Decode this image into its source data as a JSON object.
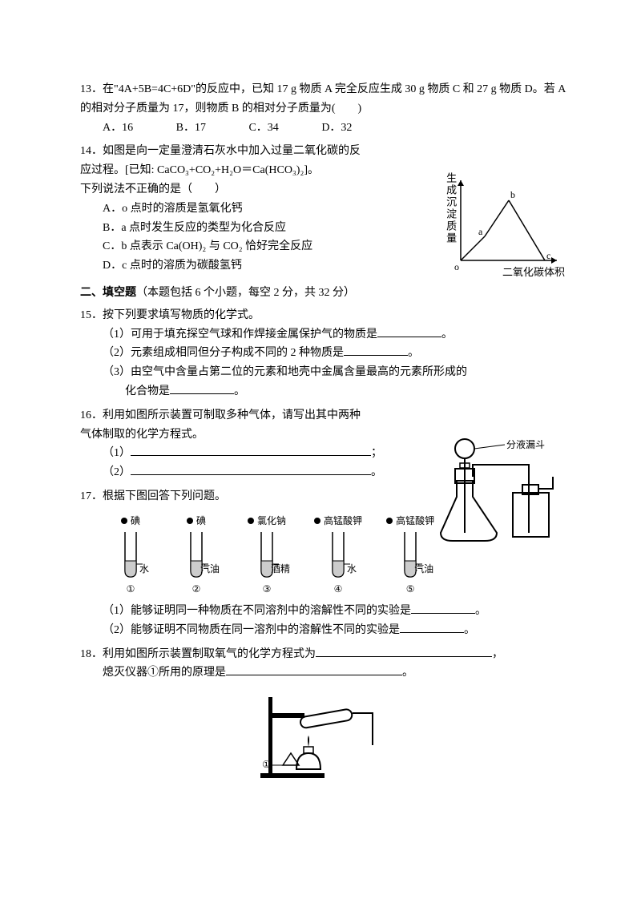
{
  "q13": {
    "num": "13．",
    "text": "在\"4A+5B=4C+6D\"的反应中，已知 17 g 物质 A 完全反应生成 30 g 物质 C 和 27 g 物质 D。若 A 的相对分子质量为 17，则物质 B 的相对分子质量为(　　)",
    "opts": {
      "a": "A．16",
      "b": "B．17",
      "c": "C．34",
      "d": "D．32"
    }
  },
  "q14": {
    "num": "14．",
    "line1": "如图是向一定量澄清石灰水中加入过量二氧化碳的反",
    "line2": "应过程。[已知: CaCO₃+CO₂+H₂O＝Ca(HCO₃)₂]。",
    "line3": "下列说法不正确的是（　　）",
    "a": "A．o 点时的溶质是氢氧化钙",
    "b": "B．a 点时发生反应的类型为化合反应",
    "c": "C．b 点表示 Ca(OH)₂ 与 CO₂ 恰好完全反应",
    "d": "D．c 点时的溶质为碳酸氢钙",
    "chart": {
      "ylabel": "生成沉淀质量",
      "xlabel": "二氧化碳体积",
      "pts": {
        "o": "o",
        "a": "a",
        "b": "b",
        "c": "c"
      }
    }
  },
  "sec2": {
    "title": "二、填空题",
    "desc": "（本题包括 6 个小题，每空 2 分，共 32 分）"
  },
  "q15": {
    "num": "15．",
    "text": "按下列要求填写物质的化学式。",
    "s1": "（1）可用于填充探空气球和作焊接金属保护气的物质是",
    "s1end": "。",
    "s2": "（2）元素组成相同但分子构成不同的 2 种物质是",
    "s2end": "。",
    "s3a": "（3）由空气中含量占第二位的元素和地壳中金属含量最高的元素所形成的",
    "s3b": "化合物是",
    "s3end": "。"
  },
  "q16": {
    "num": "16．",
    "l1": "利用如图所示装置可制取多种气体，请写出其中两种",
    "l2": "气体制取的化学方程式。",
    "s1": "（1）",
    "s1end": "；",
    "s2": "（2）",
    "s2end": "。",
    "figlabel": "分液漏斗"
  },
  "q17": {
    "num": "17．",
    "text": "根据下图回答下列问题。",
    "tubes": [
      {
        "top": "碘",
        "bottom": "水",
        "id": "①"
      },
      {
        "top": "碘",
        "bottom": "汽油",
        "id": "②"
      },
      {
        "top": "氯化钠",
        "bottom": "酒精",
        "id": "③"
      },
      {
        "top": "高锰酸钾",
        "bottom": "水",
        "id": "④"
      },
      {
        "top": "高锰酸钾",
        "bottom": "汽油",
        "id": "⑤"
      }
    ],
    "s1": "（1）能够证明同一种物质在不同溶剂中的溶解性不同的实验是",
    "s1end": "。",
    "s2": "（2）能够证明不同物质在同一溶剂中的溶解性不同的实验是",
    "s2end": "。"
  },
  "q18": {
    "num": "18．",
    "l1": "利用如图所示装置制取氧气的化学方程式为",
    "l1end": "，",
    "l2": "熄灭仪器①所用的原理是",
    "l2end": "。",
    "figid": "①"
  }
}
